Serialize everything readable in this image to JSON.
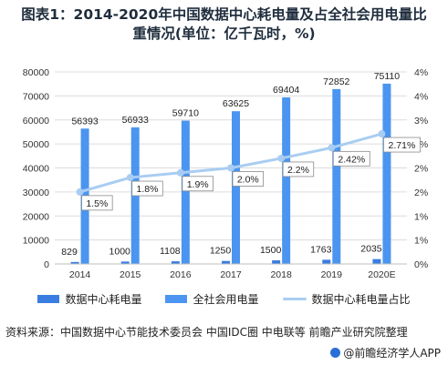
{
  "title_lines": [
    "图表1：2014-2020年中国数据中心耗电量及占全社会用电量比",
    "重情况(单位：亿千瓦时，%)"
  ],
  "colors": {
    "series_dc": "#3a7de0",
    "series_total": "#4b95f0",
    "series_ratio": "#a9cdf2",
    "grid": "#dcdcdc"
  },
  "chart_data": {
    "type": "bar",
    "categories": [
      "2014",
      "2015",
      "2016",
      "2017",
      "2018",
      "2019",
      "2020E"
    ],
    "series": [
      {
        "name": "数据中心耗电量",
        "type": "bar",
        "axis": "left",
        "values": [
          829,
          1000,
          1108,
          1250,
          1500,
          1763,
          2035
        ]
      },
      {
        "name": "全社会用电量",
        "type": "bar",
        "axis": "left",
        "values": [
          56393,
          56933,
          59710,
          63625,
          69404,
          72852,
          75110
        ]
      },
      {
        "name": "数据中心耗电量占比",
        "type": "line",
        "axis": "right",
        "values": [
          1.5,
          1.8,
          1.9,
          2.0,
          2.2,
          2.42,
          2.71
        ],
        "labels": [
          "1.5%",
          "1.8%",
          "1.9%",
          "2.0%",
          "2.2%",
          "2.42%",
          "2.71%"
        ]
      }
    ],
    "ylim": [
      0,
      80000
    ],
    "yticks": [
      "0",
      "10000",
      "20000",
      "30000",
      "40000",
      "50000",
      "60000",
      "70000",
      "80000"
    ],
    "y2lim": [
      0,
      4
    ],
    "y2ticks": [
      "0%",
      "1%",
      "1%",
      "2%",
      "2%",
      "3%",
      "3%",
      "4%",
      "4%"
    ],
    "grid": true,
    "legend_position": "bottom"
  },
  "source_text": "资料来源：中国数据中心节能技术委员会 中国IDC圈 中电联等 前瞻产业研究院整理",
  "brand_text": "@前瞻经济学人APP"
}
